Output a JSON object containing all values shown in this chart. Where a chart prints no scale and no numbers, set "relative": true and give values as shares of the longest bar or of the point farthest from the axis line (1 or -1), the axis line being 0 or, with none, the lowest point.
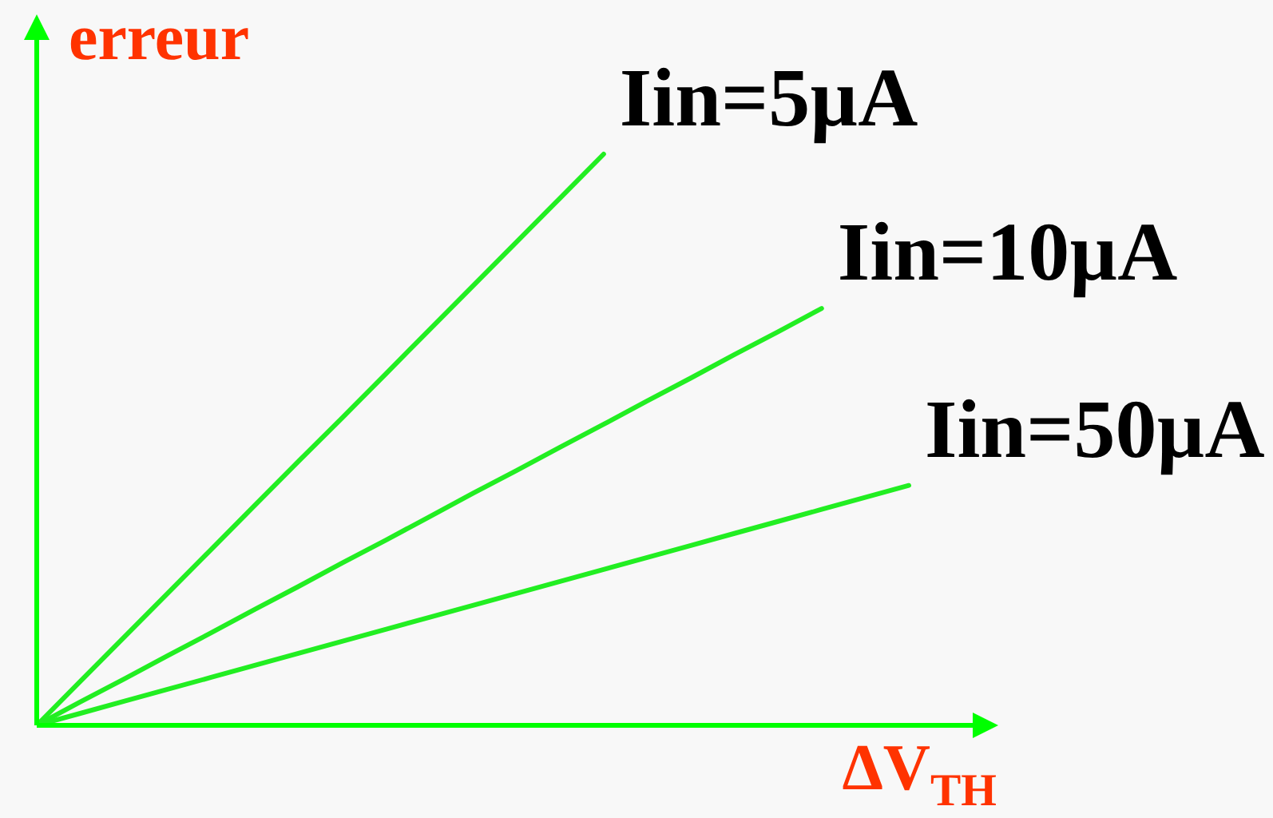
{
  "chart_data": {
    "type": "line",
    "xlabel": "ΔV$_{TH}$",
    "ylabel": "erreur",
    "relative": true,
    "marker": "none",
    "categories": [
      null,
      null,
      null,
      null,
      null,
      null,
      null,
      null,
      null,
      null,
      null,
      null,
      null,
      null,
      null,
      null,
      null,
      null,
      null,
      null,
      null
    ],
    "series": [
      {
        "name": "Iin=5µA",
        "color": "#22ee22",
        "values": [
          0,
          0.077,
          0.154,
          0.231,
          0.308,
          0.385,
          0.462,
          0.538,
          0.615,
          0.692,
          0.769,
          0.846,
          0.923,
          1,
          null,
          null,
          null,
          null,
          null,
          null,
          null
        ]
      },
      {
        "name": "Iin=10µA",
        "color": "#22ee22",
        "values": [
          0,
          0.041,
          0.081,
          0.122,
          0.162,
          0.203,
          0.243,
          0.284,
          0.324,
          0.365,
          0.406,
          0.446,
          0.487,
          0.527,
          0.568,
          0.608,
          0.649,
          0.689,
          0.73,
          null,
          null
        ]
      },
      {
        "name": "Iin=50µA",
        "color": "#22ee22",
        "values": [
          0,
          0.021,
          0.042,
          0.063,
          0.084,
          0.105,
          0.126,
          0.147,
          0.168,
          0.189,
          0.21,
          0.231,
          0.252,
          0.273,
          0.294,
          0.315,
          0.336,
          0.357,
          0.378,
          0.399,
          0.42
        ]
      }
    ]
  }
}
